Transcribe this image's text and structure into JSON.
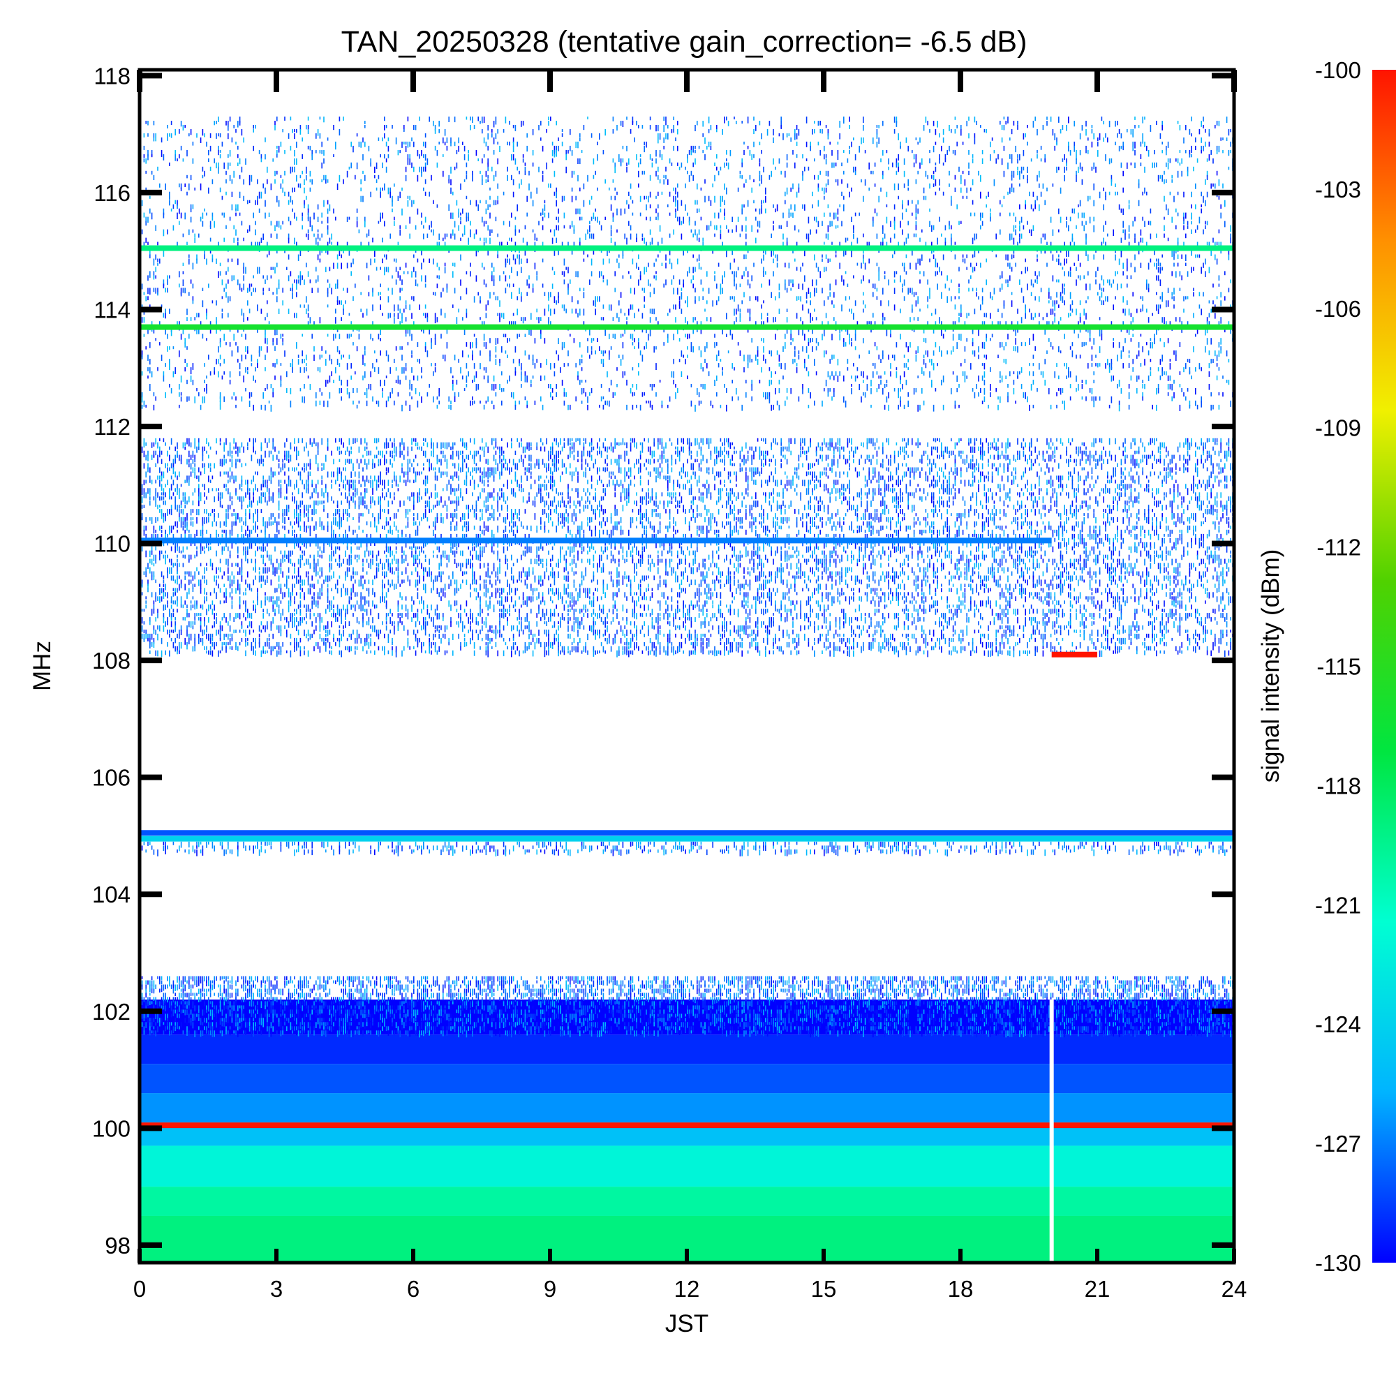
{
  "chart_data": {
    "type": "heatmap",
    "title": "TAN_20250328 (tentative gain_correction= -6.5 dB)",
    "xlabel": "JST",
    "ylabel": "MHz",
    "colorbar_label": "signal intensity (dBm)",
    "xlim": [
      0,
      24
    ],
    "ylim": [
      97.7,
      118.1
    ],
    "x_ticks": [
      0,
      3,
      6,
      9,
      12,
      15,
      18,
      21,
      24
    ],
    "x_tick_labels": [
      "0",
      "3",
      "6",
      "9",
      "12",
      "15",
      "18",
      "21",
      "24"
    ],
    "y_ticks": [
      98,
      100,
      102,
      104,
      106,
      108,
      110,
      112,
      114,
      116,
      118
    ],
    "y_tick_labels": [
      "98",
      "100",
      "102",
      "104",
      "106",
      "108",
      "110",
      "112",
      "114",
      "116",
      "118"
    ],
    "colorbar_range": [
      -130,
      -100
    ],
    "colorbar_ticks": [
      -100,
      -103,
      -106,
      -109,
      -112,
      -115,
      -118,
      -121,
      -124,
      -127,
      -130
    ],
    "colorbar_tick_labels": [
      "-100",
      "-103",
      "-106",
      "-109",
      "-112",
      "-115",
      "-118",
      "-121",
      "-124",
      "-127",
      "-130"
    ],
    "colormap": [
      "#0000ff",
      "#00b4ff",
      "#00ffd2",
      "#00e640",
      "#50d200",
      "#f0f000",
      "#ff9000",
      "#ff1400"
    ],
    "data_gap_x": 20.0,
    "regions": [
      {
        "name": "background-floor",
        "freq": [
          97.7,
          98.5
        ],
        "level_dbm": -119
      },
      {
        "name": "background-floor",
        "freq": [
          98.5,
          99.0
        ],
        "level_dbm": -120
      },
      {
        "name": "background-floor",
        "freq": [
          99.0,
          99.7
        ],
        "level_dbm": -122
      },
      {
        "name": "background-floor",
        "freq": [
          99.7,
          100.1
        ],
        "level_dbm": -125
      },
      {
        "name": "background-floor",
        "freq": [
          100.1,
          100.6
        ],
        "level_dbm": -126.5
      },
      {
        "name": "background-floor",
        "freq": [
          100.6,
          101.1
        ],
        "level_dbm": -128
      },
      {
        "name": "background-floor",
        "freq": [
          101.1,
          101.6
        ],
        "level_dbm": -129
      },
      {
        "name": "background-floor",
        "freq": [
          101.6,
          102.2
        ],
        "level_dbm": -130
      }
    ],
    "noise_bands": [
      {
        "freq": [
          101.6,
          102.6
        ],
        "density": 0.55
      },
      {
        "freq": [
          108.1,
          111.8
        ],
        "density": 0.32
      },
      {
        "freq": [
          112.3,
          117.3
        ],
        "density": 0.13
      },
      {
        "freq": [
          104.7,
          104.9
        ],
        "density": 0.3
      }
    ],
    "persistent_signals": [
      {
        "freq": 115.05,
        "level_dbm": -119,
        "x": [
          0,
          24
        ]
      },
      {
        "freq": 113.7,
        "level_dbm": -116,
        "x": [
          0,
          24
        ]
      },
      {
        "freq": 110.05,
        "level_dbm": -127,
        "x": [
          0,
          20
        ]
      },
      {
        "freq": 105.05,
        "level_dbm": -128,
        "x": [
          0,
          24
        ]
      },
      {
        "freq": 104.95,
        "level_dbm": -124,
        "x": [
          0,
          24
        ]
      },
      {
        "freq": 100.05,
        "level_dbm": -100,
        "x": [
          0,
          24
        ]
      },
      {
        "freq": 108.1,
        "level_dbm": -100,
        "x": [
          20,
          21
        ]
      }
    ]
  }
}
